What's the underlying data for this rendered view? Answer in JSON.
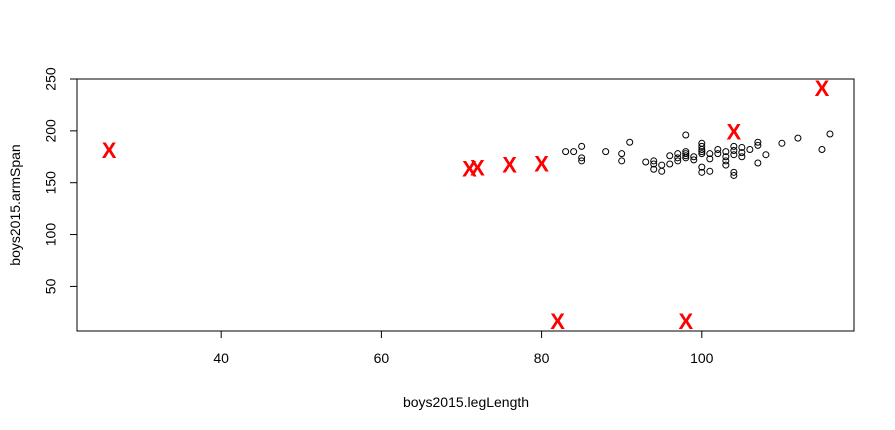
{
  "chart_data": {
    "type": "scatter",
    "title": "",
    "xlabel": "boys2015.legLength",
    "ylabel": "boys2015.armSpan",
    "xlim": [
      22,
      119
    ],
    "ylim": [
      7,
      250
    ],
    "x_ticks": [
      40,
      60,
      80,
      100
    ],
    "y_ticks": [
      50,
      100,
      150,
      200,
      250
    ],
    "grid": false,
    "legend": "none",
    "points_color": "#000000",
    "outlier_color": "#ff0000",
    "outlier_marker": "X",
    "series": [
      {
        "marker": "open-circle",
        "points": [
          [
            83,
            180
          ],
          [
            84,
            180
          ],
          [
            85,
            185
          ],
          [
            85,
            174
          ],
          [
            85,
            171
          ],
          [
            88,
            180
          ],
          [
            90,
            178
          ],
          [
            90,
            171
          ],
          [
            91,
            189
          ],
          [
            93,
            170
          ],
          [
            94,
            171
          ],
          [
            94,
            168
          ],
          [
            94,
            163
          ],
          [
            95,
            167
          ],
          [
            95,
            161
          ],
          [
            96,
            176
          ],
          [
            96,
            168
          ],
          [
            97,
            178
          ],
          [
            97,
            174
          ],
          [
            97,
            171
          ],
          [
            98,
            196
          ],
          [
            98,
            180
          ],
          [
            98,
            178
          ],
          [
            98,
            176
          ],
          [
            98,
            174
          ],
          [
            99,
            175
          ],
          [
            99,
            172
          ],
          [
            100,
            188
          ],
          [
            100,
            185
          ],
          [
            100,
            182
          ],
          [
            100,
            180
          ],
          [
            100,
            178
          ],
          [
            100,
            165
          ],
          [
            100,
            160
          ],
          [
            101,
            178
          ],
          [
            101,
            173
          ],
          [
            101,
            161
          ],
          [
            102,
            182
          ],
          [
            102,
            178
          ],
          [
            103,
            180
          ],
          [
            103,
            175
          ],
          [
            103,
            171
          ],
          [
            103,
            167
          ],
          [
            104,
            185
          ],
          [
            104,
            181
          ],
          [
            104,
            177
          ],
          [
            104,
            160
          ],
          [
            104,
            157
          ],
          [
            105,
            184
          ],
          [
            105,
            179
          ],
          [
            105,
            175
          ],
          [
            106,
            182
          ],
          [
            107,
            189
          ],
          [
            107,
            186
          ],
          [
            107,
            169
          ],
          [
            108,
            177
          ],
          [
            110,
            188
          ],
          [
            112,
            193
          ],
          [
            115,
            182
          ],
          [
            116,
            197
          ]
        ]
      },
      {
        "marker": "X",
        "points": [
          [
            26,
            181
          ],
          [
            71,
            163
          ],
          [
            72,
            164
          ],
          [
            76,
            167
          ],
          [
            80,
            168
          ],
          [
            82,
            16
          ],
          [
            98,
            16
          ],
          [
            104,
            199
          ],
          [
            115,
            241
          ]
        ]
      }
    ]
  }
}
